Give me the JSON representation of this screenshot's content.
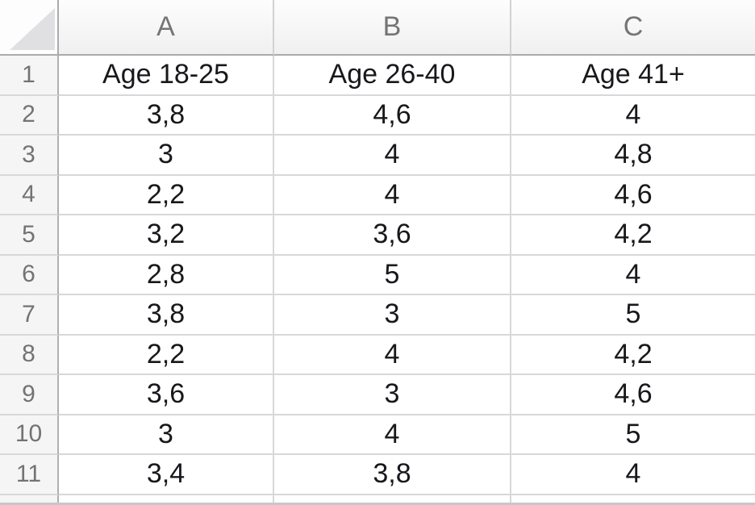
{
  "app": {
    "type": "spreadsheet-grid",
    "corner_icon": "select-all-triangle"
  },
  "column_headers": [
    "A",
    "B",
    "C"
  ],
  "rows": [
    {
      "num": "1",
      "cells": [
        "Age 18-25",
        "Age 26-40",
        "Age 41+"
      ]
    },
    {
      "num": "2",
      "cells": [
        "3,8",
        "4,6",
        "4"
      ]
    },
    {
      "num": "3",
      "cells": [
        "3",
        "4",
        "4,8"
      ]
    },
    {
      "num": "4",
      "cells": [
        "2,2",
        "4",
        "4,6"
      ]
    },
    {
      "num": "5",
      "cells": [
        "3,2",
        "3,6",
        "4,2"
      ]
    },
    {
      "num": "6",
      "cells": [
        "2,8",
        "5",
        "4"
      ]
    },
    {
      "num": "7",
      "cells": [
        "3,8",
        "3",
        "5"
      ]
    },
    {
      "num": "8",
      "cells": [
        "2,2",
        "4",
        "4,2"
      ]
    },
    {
      "num": "9",
      "cells": [
        "3,6",
        "3",
        "4,6"
      ]
    },
    {
      "num": "10",
      "cells": [
        "3",
        "4",
        "5"
      ]
    },
    {
      "num": "11",
      "cells": [
        "3,4",
        "3,8",
        "4"
      ]
    }
  ],
  "colors": {
    "grid_line": "#d8d8da",
    "strong_border": "#ababad",
    "header_bg_top": "#fdfdfd",
    "header_bg_bottom": "#f0f0f1",
    "row_header_bg": "#f5f5f6",
    "gray_text": "#757577",
    "data_text": "#18181c",
    "triangle": "#e0e0e2",
    "bottom_line": "#c7c7c9"
  }
}
